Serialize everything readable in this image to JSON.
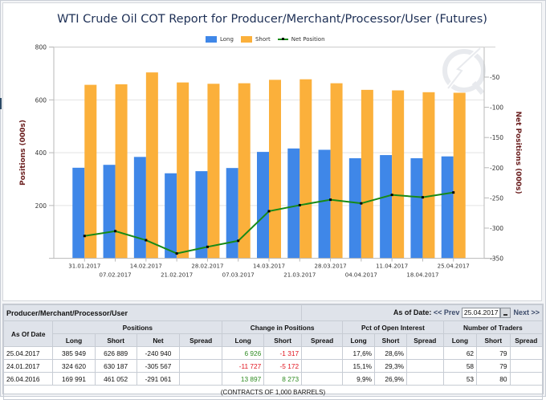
{
  "chart_data": {
    "type": "bar",
    "title": "WTI Crude Oil COT Report for Producer/Merchant/Processor/User (Futures)",
    "xlabel": "",
    "ylabel": "Positions (000s)",
    "y2label": "Net Positions (000s)",
    "ylim": [
      0,
      800
    ],
    "y2lim": [
      -350,
      -50
    ],
    "yticks": [
      200,
      400,
      600,
      800
    ],
    "y2ticks": [
      -350,
      -300,
      -250,
      -200,
      -150,
      -100,
      -50
    ],
    "grid": true,
    "legend_placement": "top-center",
    "categories": [
      "31.01.2017",
      "07.02.2017",
      "14.02.2017",
      "21.02.2017",
      "28.02.2017",
      "07.03.2017",
      "14.03.2017",
      "21.03.2017",
      "28.03.2017",
      "04.04.2017",
      "11.04.2017",
      "18.04.2017",
      "25.04.2017"
    ],
    "series": [
      {
        "name": "Long",
        "type": "bar",
        "axis": "left",
        "color": "#3f87e8",
        "values": [
          343,
          354,
          384,
          322,
          330,
          342,
          403,
          416,
          411,
          379,
          391,
          379,
          386
        ]
      },
      {
        "name": "Short",
        "type": "bar",
        "axis": "left",
        "color": "#fbb03b",
        "values": [
          657,
          659,
          704,
          666,
          661,
          663,
          676,
          678,
          663,
          638,
          636,
          629,
          627
        ]
      },
      {
        "name": "Net Position",
        "type": "line",
        "axis": "right",
        "color": "#178a17",
        "values": [
          -313,
          -305,
          -320,
          -342,
          -331,
          -321,
          -272,
          -262,
          -253,
          -259,
          -245,
          -249,
          -241
        ]
      }
    ]
  },
  "table": {
    "group_title": "Producer/Merchant/Processor/User",
    "as_of_label": "As of Date:",
    "prev_label": "<< Prev",
    "next_label": "Next >>",
    "date_value": "25.04.2017",
    "col_as_of": "As Of Date",
    "groups": [
      "Positions",
      "Change in Positions",
      "Pct of Open Interest",
      "Number of Traders"
    ],
    "subcols": [
      "Long",
      "Short",
      "Net",
      "Spread",
      "Long",
      "Short",
      "Spread",
      "Long",
      "Short",
      "Spread",
      "Long",
      "Short",
      "Spread"
    ],
    "rows": [
      {
        "date": "25.04.2017",
        "long": "385 949",
        "short": "626 889",
        "net": "-240 940",
        "spread": "",
        "chg_long": "6 926",
        "chg_short": "-1 317",
        "chg_spread": "",
        "pct_long": "17,6%",
        "pct_short": "28,6%",
        "pct_spread": "",
        "tr_long": "62",
        "tr_short": "79",
        "tr_spread": ""
      },
      {
        "date": "24.01.2017",
        "long": "324 620",
        "short": "630 187",
        "net": "-305 567",
        "spread": "",
        "chg_long": "-11 727",
        "chg_short": "-5 172",
        "chg_spread": "",
        "pct_long": "15,1%",
        "pct_short": "29,3%",
        "pct_spread": "",
        "tr_long": "58",
        "tr_short": "79",
        "tr_spread": ""
      },
      {
        "date": "26.04.2016",
        "long": "169 991",
        "short": "461 052",
        "net": "-291 061",
        "spread": "",
        "chg_long": "13 897",
        "chg_short": "8 273",
        "chg_spread": "",
        "pct_long": "9,9%",
        "pct_short": "26,9%",
        "pct_spread": "",
        "tr_long": "53",
        "tr_short": "80",
        "tr_spread": ""
      }
    ],
    "footer": "(CONTRACTS OF 1,000 BARRELS)"
  }
}
